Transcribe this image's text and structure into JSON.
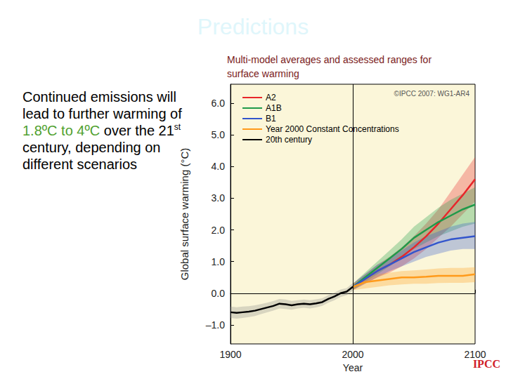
{
  "slide": {
    "title": "Predictions",
    "body": [
      {
        "text": "Continued emissions will lead to further warming of "
      },
      {
        "text": "1.8ºC to 4ºC",
        "color": "#4fa12e"
      },
      {
        "text": " over the 21"
      },
      {
        "text": "st",
        "sup": true
      },
      {
        "text": " century, depending on different scenarios"
      }
    ],
    "source": "IPCC"
  },
  "chart_data": {
    "type": "line",
    "title": "Multi-model averages and assessed ranges for surface warming",
    "annotation": "©IPCC 2007: WG1-AR4",
    "x_label": "Year",
    "y_label": "Global surface warming (°C)",
    "xlim": [
      1900,
      2100
    ],
    "xticks": [
      1900,
      2000,
      2100
    ],
    "ylim": [
      -1.6,
      6.6
    ],
    "yticks": [
      {
        "value": -1,
        "label": "–1.0"
      },
      {
        "value": 0,
        "label": "0.0"
      },
      {
        "value": 1,
        "label": "1.0"
      },
      {
        "value": 2,
        "label": "2.0"
      },
      {
        "value": 3,
        "label": "3.0"
      },
      {
        "value": 4,
        "label": "4.0"
      },
      {
        "value": 5,
        "label": "5.0"
      },
      {
        "value": 6,
        "label": "6.0"
      }
    ],
    "grid": false,
    "legend": "upper left",
    "vertical_line": 2000,
    "series": [
      {
        "name": "A2",
        "color": "#e8262a",
        "x": [
          2000,
          2010,
          2020,
          2030,
          2040,
          2050,
          2060,
          2070,
          2080,
          2090,
          2100
        ],
        "values": [
          0.2,
          0.45,
          0.7,
          0.9,
          1.15,
          1.45,
          1.8,
          2.2,
          2.65,
          3.1,
          3.6
        ],
        "lower": [
          0.1,
          0.3,
          0.5,
          0.65,
          0.85,
          1.1,
          1.4,
          1.75,
          2.1,
          2.5,
          2.9
        ],
        "upper": [
          0.3,
          0.6,
          0.9,
          1.15,
          1.45,
          1.8,
          2.2,
          2.65,
          3.2,
          3.75,
          4.3
        ]
      },
      {
        "name": "A1B",
        "color": "#1f9a4a",
        "x": [
          2000,
          2010,
          2020,
          2030,
          2040,
          2050,
          2060,
          2070,
          2080,
          2090,
          2100
        ],
        "values": [
          0.2,
          0.5,
          0.8,
          1.1,
          1.4,
          1.75,
          2.0,
          2.25,
          2.45,
          2.65,
          2.8
        ],
        "lower": [
          0.1,
          0.35,
          0.6,
          0.85,
          1.1,
          1.4,
          1.6,
          1.8,
          1.95,
          2.1,
          2.2
        ],
        "upper": [
          0.3,
          0.65,
          1.0,
          1.35,
          1.7,
          2.1,
          2.4,
          2.7,
          2.95,
          3.15,
          3.35
        ]
      },
      {
        "name": "B1",
        "color": "#3355cc",
        "x": [
          2000,
          2010,
          2020,
          2030,
          2040,
          2050,
          2060,
          2070,
          2080,
          2090,
          2100
        ],
        "values": [
          0.2,
          0.45,
          0.7,
          0.9,
          1.1,
          1.3,
          1.45,
          1.6,
          1.7,
          1.75,
          1.8
        ],
        "lower": [
          0.1,
          0.3,
          0.5,
          0.7,
          0.85,
          1.0,
          1.15,
          1.25,
          1.35,
          1.4,
          1.4
        ],
        "upper": [
          0.3,
          0.6,
          0.9,
          1.1,
          1.35,
          1.6,
          1.8,
          1.95,
          2.1,
          2.2,
          2.25
        ]
      },
      {
        "name": "Year 2000 Constant Concentrations",
        "color": "#ff9a1a",
        "x": [
          2000,
          2010,
          2020,
          2030,
          2040,
          2050,
          2060,
          2070,
          2080,
          2090,
          2100
        ],
        "values": [
          0.2,
          0.35,
          0.4,
          0.45,
          0.5,
          0.5,
          0.52,
          0.55,
          0.55,
          0.55,
          0.6
        ],
        "lower": [
          0.1,
          0.15,
          0.2,
          0.25,
          0.28,
          0.3,
          0.3,
          0.32,
          0.33,
          0.33,
          0.35
        ],
        "upper": [
          0.3,
          0.5,
          0.6,
          0.65,
          0.7,
          0.72,
          0.75,
          0.78,
          0.8,
          0.8,
          0.82
        ]
      },
      {
        "name": "20th century",
        "color": "#000000",
        "x": [
          1900,
          1905,
          1910,
          1915,
          1920,
          1925,
          1930,
          1935,
          1940,
          1945,
          1950,
          1955,
          1960,
          1965,
          1970,
          1975,
          1980,
          1985,
          1990,
          1995,
          2000
        ],
        "values": [
          -0.6,
          -0.62,
          -0.6,
          -0.58,
          -0.55,
          -0.5,
          -0.45,
          -0.4,
          -0.33,
          -0.35,
          -0.38,
          -0.35,
          -0.33,
          -0.35,
          -0.32,
          -0.28,
          -0.18,
          -0.1,
          0.0,
          0.05,
          0.2
        ],
        "lower": [
          -0.78,
          -0.8,
          -0.78,
          -0.75,
          -0.72,
          -0.66,
          -0.6,
          -0.55,
          -0.48,
          -0.5,
          -0.52,
          -0.48,
          -0.46,
          -0.48,
          -0.45,
          -0.4,
          -0.3,
          -0.22,
          -0.12,
          -0.06,
          0.08
        ],
        "upper": [
          -0.42,
          -0.44,
          -0.42,
          -0.41,
          -0.38,
          -0.34,
          -0.3,
          -0.25,
          -0.18,
          -0.2,
          -0.24,
          -0.22,
          -0.2,
          -0.22,
          -0.19,
          -0.16,
          -0.06,
          0.02,
          0.12,
          0.16,
          0.32
        ],
        "band_color": "#888888"
      }
    ]
  }
}
